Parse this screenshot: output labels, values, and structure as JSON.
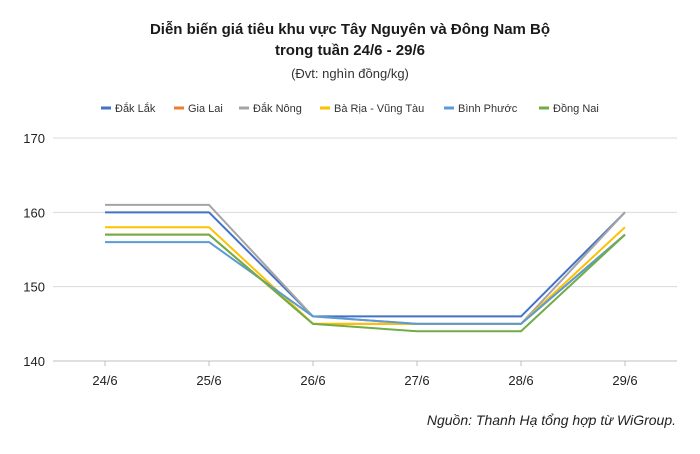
{
  "chart_data": {
    "type": "line",
    "title": "Diễn biến giá tiêu khu vực Tây Nguyên và Đông Nam Bộ",
    "title_line2": "trong tuần 24/6 - 29/6",
    "subtitle": "(Đvt: nghìn đồng/kg)",
    "source": "Nguồn: Thanh Hạ tổng hợp từ WiGroup.",
    "categories": [
      "24/6",
      "25/6",
      "26/6",
      "27/6",
      "28/6",
      "29/6"
    ],
    "ylim": [
      140,
      170
    ],
    "yticks": [
      140,
      150,
      160,
      170
    ],
    "grid": "horizontal",
    "legend": "top",
    "series": [
      {
        "name": "Đắk Lắk",
        "color": "#4472C4",
        "values": [
          160,
          160,
          146,
          146,
          146,
          160
        ]
      },
      {
        "name": "Gia Lai",
        "color": "#ED7D31",
        "values": [
          157,
          157,
          145,
          145,
          145,
          157
        ]
      },
      {
        "name": "Đắk Nông",
        "color": "#A5A5A5",
        "values": [
          161,
          161,
          146,
          145,
          145,
          160
        ]
      },
      {
        "name": "Bà Rịa - Vũng Tàu",
        "color": "#FFC000",
        "values": [
          158,
          158,
          145,
          145,
          145,
          158
        ]
      },
      {
        "name": "Bình Phước",
        "color": "#5B9BD5",
        "values": [
          156,
          156,
          146,
          145,
          145,
          157
        ]
      },
      {
        "name": "Đồng Nai",
        "color": "#70AD47",
        "values": [
          157,
          157,
          145,
          144,
          144,
          157
        ]
      }
    ]
  }
}
